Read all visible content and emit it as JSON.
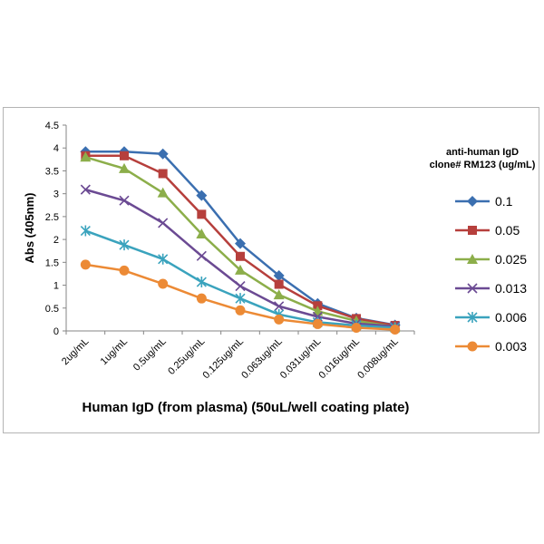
{
  "chart_data": {
    "type": "line",
    "title": "",
    "xlabel": "Human IgD (from plasma) (50uL/well coating plate)",
    "ylabel": "Abs (405nm)",
    "ylim": [
      0,
      4.5
    ],
    "yticks": [
      "0",
      "0.5",
      "1",
      "1.5",
      "2",
      "2.5",
      "3",
      "3.5",
      "4",
      "4.5"
    ],
    "categories": [
      "2ug/mL",
      "1ug/mL",
      "0.5ug/mL",
      "0.25ug/mL",
      "0.125ug/mL",
      "0.063ug/mL",
      "0.031ug/mL",
      "0.016ug/mL",
      "0.008ug/mL"
    ],
    "grid": false,
    "legend_position": "right",
    "legend_title_line1": "anti-human IgD",
    "legend_title_line2": "clone# RM123 (ug/mL)",
    "series": [
      {
        "name": "0.1",
        "color": "#3b6fb0",
        "marker": "diamond",
        "values": [
          3.92,
          3.92,
          3.87,
          2.96,
          1.91,
          1.21,
          0.6,
          0.28,
          0.13
        ]
      },
      {
        "name": "0.05",
        "color": "#b63f3c",
        "marker": "square",
        "values": [
          3.83,
          3.83,
          3.44,
          2.55,
          1.63,
          1.02,
          0.55,
          0.27,
          0.12
        ]
      },
      {
        "name": "0.025",
        "color": "#8cae4a",
        "marker": "triangle",
        "values": [
          3.8,
          3.55,
          3.02,
          2.12,
          1.33,
          0.79,
          0.43,
          0.22,
          0.09
        ]
      },
      {
        "name": "0.013",
        "color": "#6b4a93",
        "marker": "x",
        "values": [
          3.09,
          2.85,
          2.36,
          1.64,
          0.98,
          0.54,
          0.31,
          0.16,
          0.1
        ]
      },
      {
        "name": "0.006",
        "color": "#3aa3bd",
        "marker": "star",
        "values": [
          2.19,
          1.88,
          1.57,
          1.07,
          0.71,
          0.36,
          0.19,
          0.12,
          0.07
        ]
      },
      {
        "name": "0.003",
        "color": "#ec8a35",
        "marker": "circle",
        "values": [
          1.45,
          1.32,
          1.03,
          0.71,
          0.45,
          0.25,
          0.15,
          0.07,
          0.03
        ]
      }
    ]
  }
}
